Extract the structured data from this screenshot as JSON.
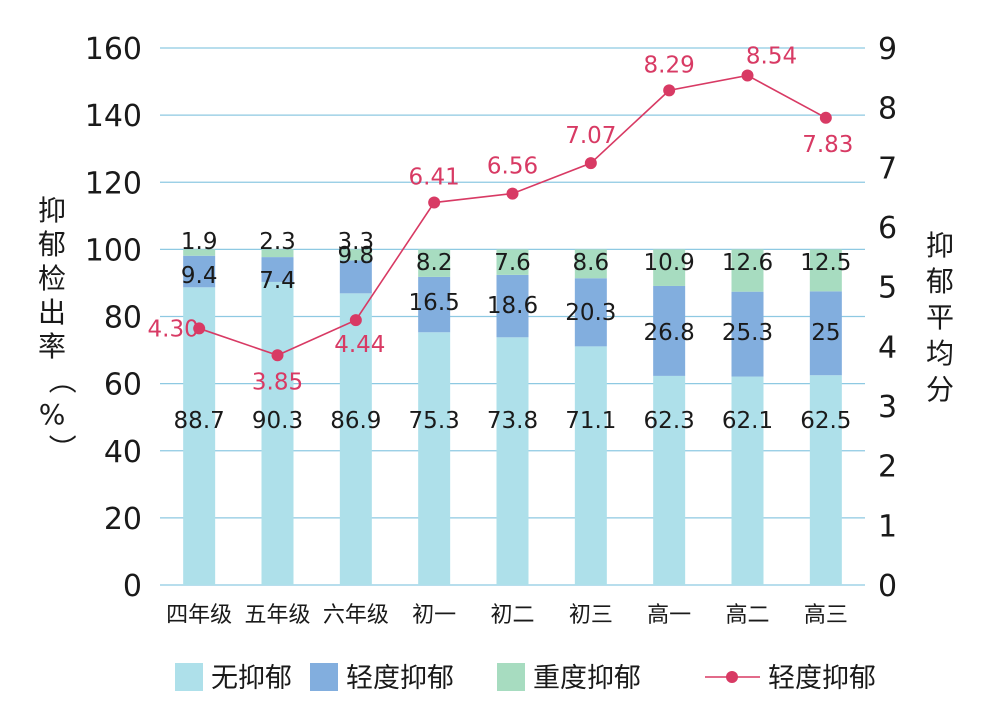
{
  "chart_data": {
    "type": "bar",
    "stacked": true,
    "categories": [
      "四年级",
      "五年级",
      "六年级",
      "初一",
      "初二",
      "初三",
      "高一",
      "高二",
      "高三"
    ],
    "series": [
      {
        "name": "无抑郁",
        "kind": "bar",
        "color": "#aee0ea",
        "values": [
          88.7,
          90.3,
          86.9,
          75.3,
          73.8,
          71.1,
          62.3,
          62.1,
          62.5
        ]
      },
      {
        "name": "轻度抑郁",
        "kind": "bar",
        "color": "#82aede",
        "values": [
          9.4,
          7.4,
          9.8,
          16.5,
          18.6,
          20.3,
          26.8,
          25.3,
          25
        ]
      },
      {
        "name": "重度抑郁",
        "kind": "bar",
        "color": "#a7dcc0",
        "values": [
          1.9,
          2.3,
          3.3,
          8.2,
          7.6,
          8.6,
          10.9,
          12.6,
          12.5
        ]
      },
      {
        "name": "轻度抑郁",
        "kind": "line",
        "axis": "right",
        "color": "#d83a64",
        "values": [
          4.3,
          3.85,
          4.44,
          6.41,
          6.56,
          7.07,
          8.29,
          8.54,
          7.83
        ],
        "labels": [
          "4.30",
          "3.85",
          "4.44",
          "6.41",
          "6.56",
          "7.07",
          "8.29",
          "8.54",
          "7.83"
        ]
      }
    ],
    "ylabel": "抑郁检出率（%）",
    "y2label": "抑郁平均分",
    "ylim": [
      0,
      160
    ],
    "y2lim": [
      0,
      9
    ],
    "yticks": [
      0,
      20,
      40,
      60,
      80,
      100,
      120,
      140,
      160
    ],
    "y2ticks": [
      0,
      1,
      2,
      3,
      4,
      5,
      6,
      7,
      8,
      9
    ],
    "grid": true,
    "gridColor": "#8ec9e2",
    "legend": "bottom"
  }
}
